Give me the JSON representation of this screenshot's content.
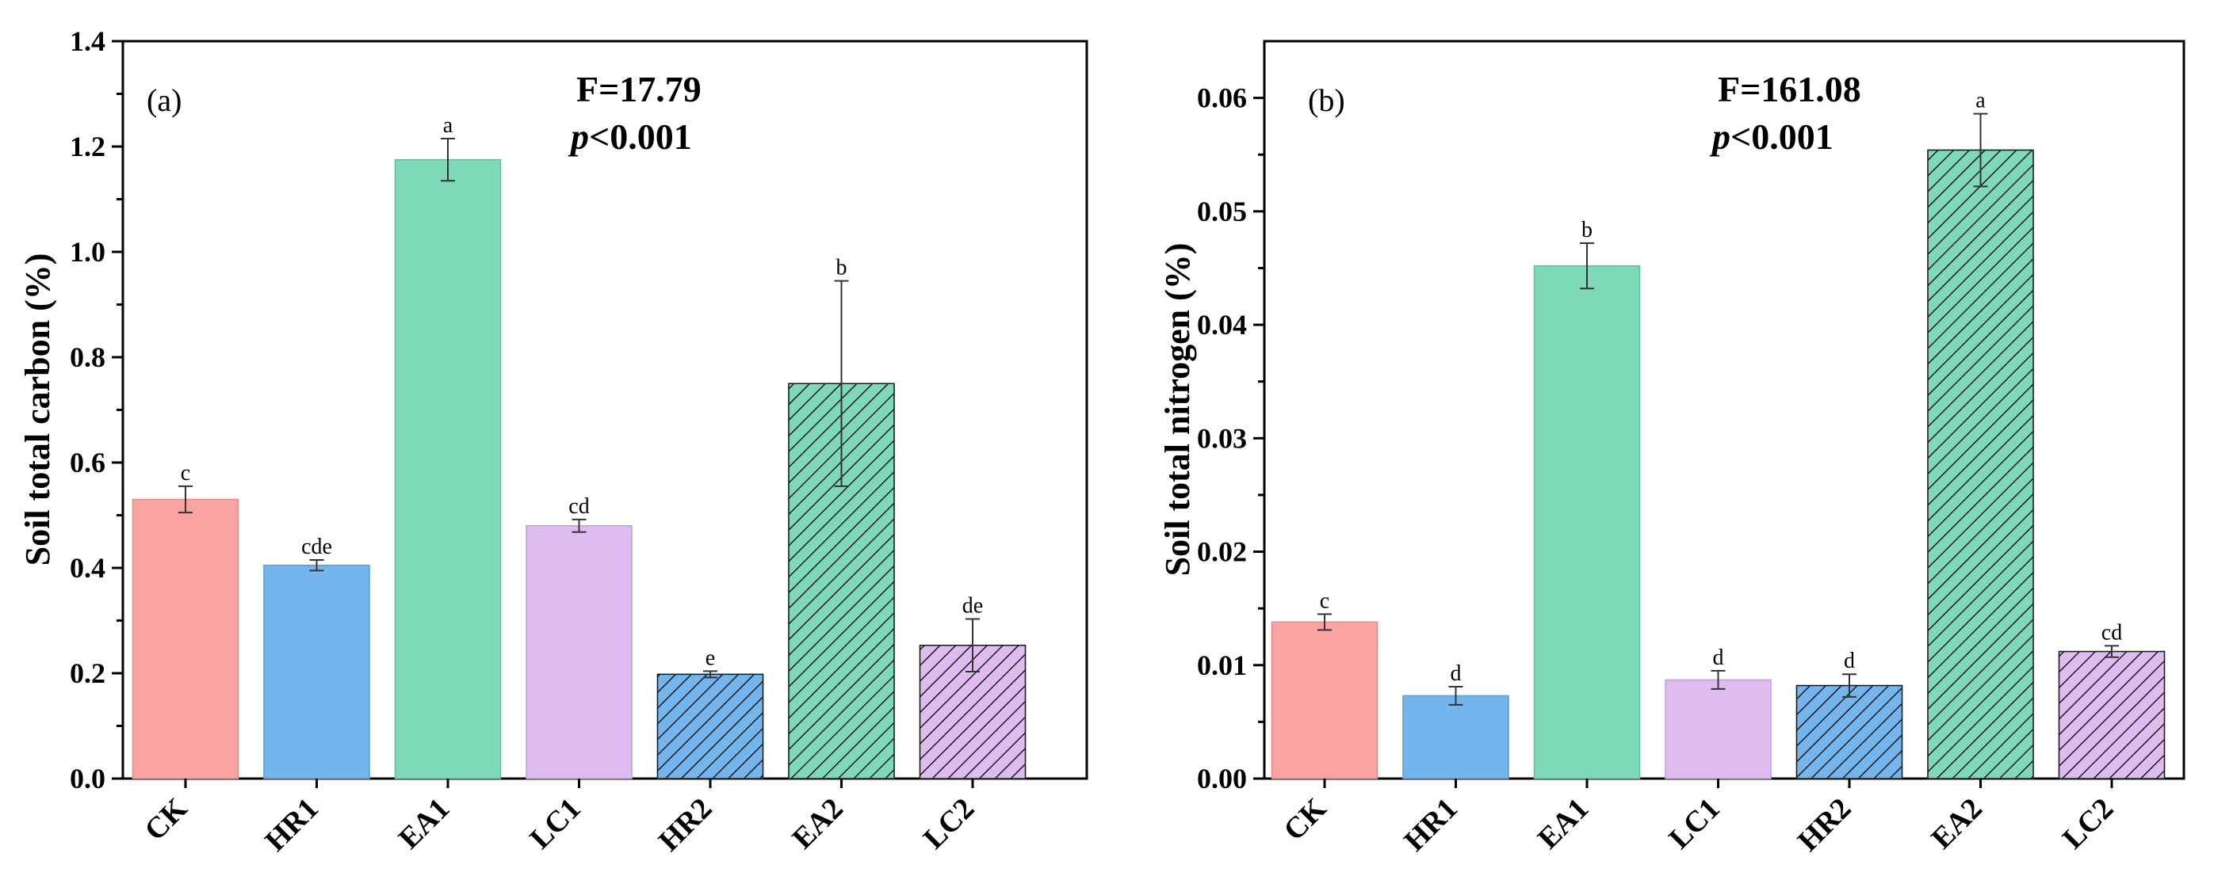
{
  "chart_data": [
    {
      "type": "bar",
      "panel": "(a)",
      "title": "",
      "xlabel": "",
      "ylabel": "Soil total carbon (%)",
      "categories": [
        "CK",
        "HR1",
        "EA1",
        "LC1",
        "HR2",
        "EA2",
        "LC2"
      ],
      "values": [
        0.53,
        0.405,
        1.175,
        0.48,
        0.198,
        0.75,
        0.253
      ],
      "errors": [
        0.025,
        0.01,
        0.04,
        0.012,
        0.006,
        0.195,
        0.05
      ],
      "significance": [
        "c",
        "cde",
        "a",
        "cd",
        "e",
        "b",
        "de"
      ],
      "ylim": [
        0,
        1.4
      ],
      "yticks": [
        "0.0",
        "0.2",
        "0.4",
        "0.6",
        "0.8",
        "1.0",
        "1.2",
        "1.4"
      ],
      "ytick_values": [
        0,
        0.2,
        0.4,
        0.6,
        0.8,
        1.0,
        1.2,
        1.4
      ],
      "stat_f": "F=17.79",
      "stat_p_italic": "p",
      "stat_p_rest": "<0.001",
      "grid": false
    },
    {
      "type": "bar",
      "panel": "(b)",
      "title": "",
      "xlabel": "",
      "ylabel": "Soil total nitrogen (%)",
      "categories": [
        "CK",
        "HR1",
        "EA1",
        "LC1",
        "HR2",
        "EA2",
        "LC2"
      ],
      "values": [
        0.0138,
        0.0073,
        0.0452,
        0.0087,
        0.0082,
        0.0554,
        0.0112
      ],
      "errors": [
        0.0007,
        0.0008,
        0.002,
        0.0008,
        0.001,
        0.0032,
        0.0005
      ],
      "significance": [
        "c",
        "d",
        "b",
        "d",
        "d",
        "a",
        "cd"
      ],
      "ylim": [
        0,
        0.065
      ],
      "yticks": [
        "0.00",
        "0.01",
        "0.02",
        "0.03",
        "0.04",
        "0.05",
        "0.06"
      ],
      "ytick_values": [
        0,
        0.01,
        0.02,
        0.03,
        0.04,
        0.05,
        0.06
      ],
      "stat_f": "F=161.08",
      "stat_p_italic": "p",
      "stat_p_rest": "<0.001",
      "grid": false
    }
  ],
  "style": {
    "bar_colors": [
      "#f9a3a3",
      "#74b5ee",
      "#7ed9b8",
      "#dfbcf0",
      "#74b5ee",
      "#7ed9b8",
      "#dfbcf0"
    ],
    "bar_strokes": [
      "#e08a8a",
      "#5a9cd6",
      "#5fbf9c",
      "#c39fd8",
      "#5a9cd6",
      "#5fbf9c",
      "#c39fd8"
    ],
    "hatched": [
      false,
      false,
      false,
      false,
      true,
      true,
      true
    ],
    "hatch_color": "#1a1a1a"
  }
}
